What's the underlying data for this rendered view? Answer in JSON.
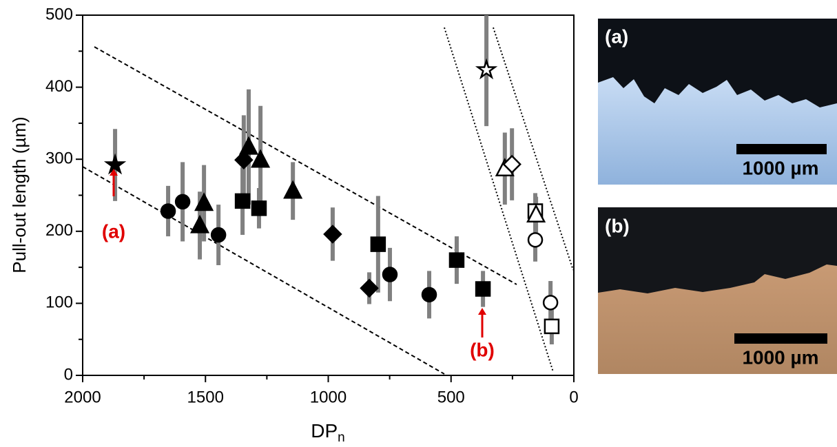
{
  "chart_data": {
    "type": "scatter",
    "ylabel": "Pull-out length (µm)",
    "xlabel": "DP",
    "xlabel_subscript": "n",
    "xlim": [
      2000,
      0
    ],
    "xticks": [
      2000,
      1500,
      1000,
      500,
      0
    ],
    "xminorticks": [
      1750,
      1250,
      750,
      250
    ],
    "ylim": [
      0,
      500
    ],
    "yticks": [
      0,
      100,
      200,
      300,
      400,
      500
    ],
    "yminorticks": [
      50,
      150,
      250,
      350,
      450
    ],
    "series": [
      {
        "marker": "star",
        "filled": true,
        "color": "#000000",
        "x": [
          1868
        ],
        "values": [
          292
        ],
        "errors": [
          50
        ]
      },
      {
        "marker": "circle",
        "filled": true,
        "color": "#000000",
        "x": [
          1652,
          1593,
          1447,
          749,
          589
        ],
        "values": [
          228,
          241,
          195,
          140,
          112
        ],
        "errors": [
          35,
          55,
          42,
          37,
          33
        ]
      },
      {
        "marker": "triangle",
        "filled": true,
        "color": "#000000",
        "x": [
          1523,
          1506,
          1324,
          1276,
          1144
        ],
        "values": [
          208,
          239,
          317,
          299,
          256
        ],
        "errors": [
          47,
          53,
          80,
          75,
          40
        ]
      },
      {
        "marker": "diamond",
        "filled": true,
        "color": "#000000",
        "x": [
          1344,
          982,
          833
        ],
        "values": [
          299,
          196,
          121
        ],
        "errors": [
          62,
          37,
          22
        ]
      },
      {
        "marker": "square",
        "filled": true,
        "color": "#000000",
        "x": [
          1349,
          1282,
          797,
          477,
          370
        ],
        "values": [
          242,
          232,
          182,
          160,
          120
        ],
        "errors": [
          47,
          28,
          67,
          33,
          25
        ]
      },
      {
        "marker": "star",
        "filled": false,
        "color": "#000000",
        "x": [
          356
        ],
        "values": [
          424
        ],
        "errors": [
          78
        ]
      },
      {
        "marker": "triangle",
        "filled": false,
        "color": "#000000",
        "x": [
          281
        ],
        "values": [
          287
        ],
        "errors": [
          50
        ]
      },
      {
        "marker": "diamond",
        "filled": false,
        "color": "#000000",
        "x": [
          252
        ],
        "values": [
          293
        ],
        "errors": [
          50
        ]
      },
      {
        "marker": "square",
        "filled": false,
        "color": "#000000",
        "x": [
          157,
          90
        ],
        "values": [
          228,
          68
        ],
        "errors": [
          25,
          25
        ]
      },
      {
        "marker": "triangle",
        "filled": false,
        "color": "#000000",
        "x": [
          154
        ],
        "values": [
          223
        ],
        "errors": [
          25
        ]
      },
      {
        "marker": "circle",
        "filled": false,
        "color": "#000000",
        "x": [
          157,
          95
        ],
        "values": [
          188,
          101
        ],
        "errors": [
          30,
          30
        ]
      }
    ],
    "error_color": "#808080",
    "annotations": [
      {
        "text": "(a)",
        "color": "#e00000"
      },
      {
        "text": "(b)",
        "color": "#e00000"
      }
    ]
  },
  "panels": [
    {
      "label": "(a)",
      "scale_bar": "1000 µm"
    },
    {
      "label": "(b)",
      "scale_bar": "1000 µm"
    }
  ]
}
